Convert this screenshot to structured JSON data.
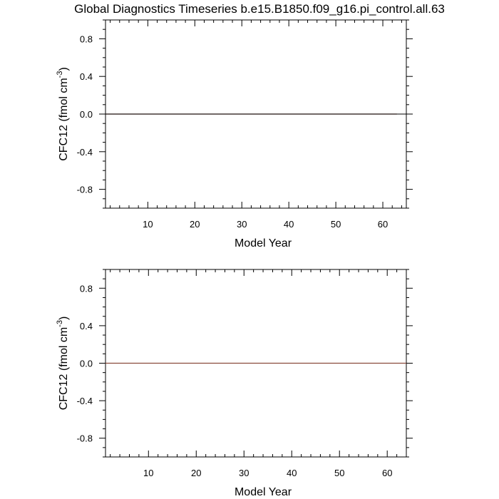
{
  "title": "Global Diagnostics Timeseries b.e15.B1850.f09_g16.pi_control.all.63",
  "chart_data": [
    {
      "type": "line",
      "xlabel": "Model Year",
      "ylabel_main": "CFC12 (fmol cm",
      "ylabel_sup": "-3",
      "ylabel_close": ")",
      "xlim": [
        1,
        65
      ],
      "ylim": [
        -1,
        1
      ],
      "xticks": [
        10,
        20,
        30,
        40,
        50,
        60
      ],
      "yticks": [
        0.8,
        0.4,
        0.0,
        -0.4,
        -0.8
      ],
      "ytick_labels": [
        "0.8",
        "0.4",
        "0.0",
        "-0.4",
        "-0.8"
      ],
      "series": [
        {
          "color": "#8b4a3c",
          "x": [
            1,
            63
          ],
          "y": [
            0,
            0
          ]
        },
        {
          "color": "#000000",
          "x": [
            1,
            65
          ],
          "y": [
            0,
            0
          ]
        }
      ]
    },
    {
      "type": "line",
      "xlabel": "Model Year",
      "ylabel_main": "CFC12 (fmol cm",
      "ylabel_sup": "-3",
      "ylabel_close": ")",
      "xlim": [
        1,
        64
      ],
      "ylim": [
        -1,
        1
      ],
      "xticks": [
        10,
        20,
        30,
        40,
        50,
        60
      ],
      "yticks": [
        0.8,
        0.4,
        0.0,
        -0.4,
        -0.8
      ],
      "ytick_labels": [
        "0.8",
        "0.4",
        "0.0",
        "-0.4",
        "-0.8"
      ],
      "series": [
        {
          "color": "#8b4a3c",
          "x": [
            1,
            64
          ],
          "y": [
            0,
            0
          ]
        }
      ]
    }
  ]
}
